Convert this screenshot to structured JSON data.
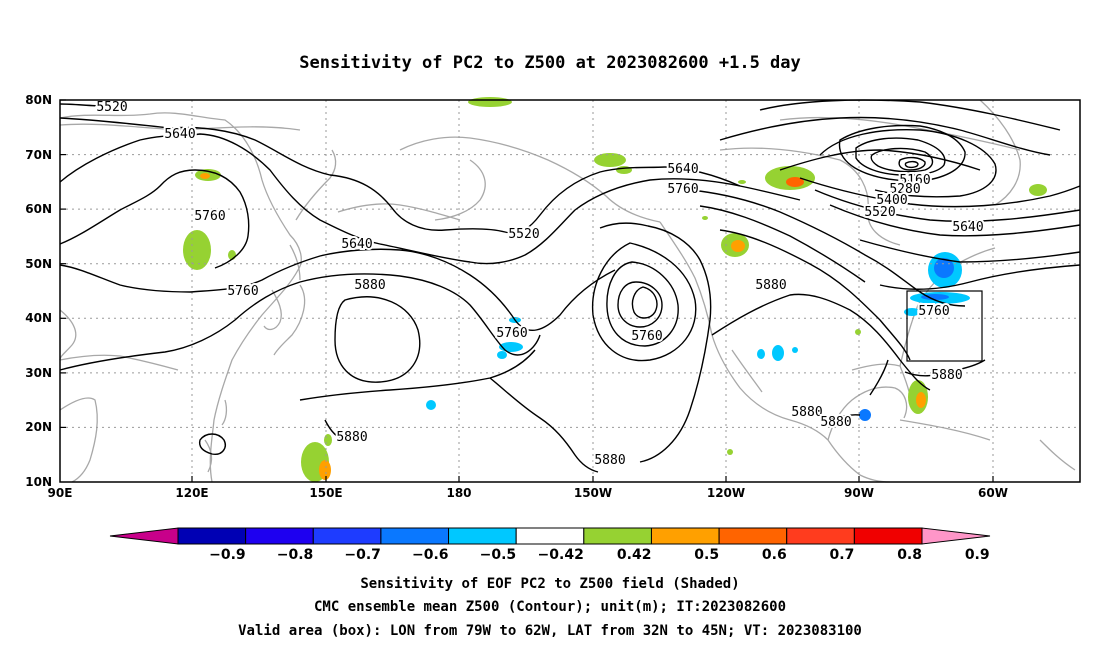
{
  "title": "Sensitivity of PC2 to Z500 at 2023082600 +1.5 day",
  "map": {
    "lat_ticks": [
      "80N",
      "70N",
      "60N",
      "50N",
      "40N",
      "30N",
      "20N",
      "10N"
    ],
    "lon_ticks": [
      "90E",
      "120E",
      "150E",
      "180",
      "150W",
      "120W",
      "90W",
      "60W"
    ],
    "contour_labels": [
      {
        "text": "5520",
        "id": "c1"
      },
      {
        "text": "5640",
        "id": "c2"
      },
      {
        "text": "5760",
        "id": "c3"
      },
      {
        "text": "5640",
        "id": "c4"
      },
      {
        "text": "5760",
        "id": "c5"
      },
      {
        "text": "5880",
        "id": "c6"
      },
      {
        "text": "5760",
        "id": "c7"
      },
      {
        "text": "5880",
        "id": "c8"
      },
      {
        "text": "5520",
        "id": "c9"
      },
      {
        "text": "5640",
        "id": "c10"
      },
      {
        "text": "5760",
        "id": "c11"
      },
      {
        "text": "5760",
        "id": "c12"
      },
      {
        "text": "5880",
        "id": "c13"
      },
      {
        "text": "5880",
        "id": "c14"
      },
      {
        "text": "5160",
        "id": "c15"
      },
      {
        "text": "5280",
        "id": "c16"
      },
      {
        "text": "5400",
        "id": "c17"
      },
      {
        "text": "5520",
        "id": "c18"
      },
      {
        "text": "5640",
        "id": "c19"
      },
      {
        "text": "5760",
        "id": "c20"
      },
      {
        "text": "5880",
        "id": "c21"
      },
      {
        "text": "5880",
        "id": "c22"
      },
      {
        "text": "5880",
        "id": "c23"
      }
    ]
  },
  "colorbar": {
    "labels": [
      "−0.9",
      "−0.8",
      "−0.7",
      "−0.6",
      "−0.5",
      "−0.42",
      "0.42",
      "0.5",
      "0.6",
      "0.7",
      "0.8",
      "0.9"
    ],
    "colors": [
      "#c8008a",
      "#0000b4",
      "#1e00f0",
      "#1e3cff",
      "#0a78ff",
      "#00c8ff",
      "#ffffff",
      "#96d232",
      "#ffa000",
      "#ff6400",
      "#ff3c1e",
      "#f00000",
      "#ff96c8"
    ]
  },
  "notes": [
    "Sensitivity of EOF PC2 to Z500 field (Shaded)",
    "CMC ensemble mean Z500 (Contour); unit(m); IT:2023082600",
    "Valid area (box): LON from 79W to 62W, LAT from 32N to 45N; VT: 2023083100"
  ]
}
